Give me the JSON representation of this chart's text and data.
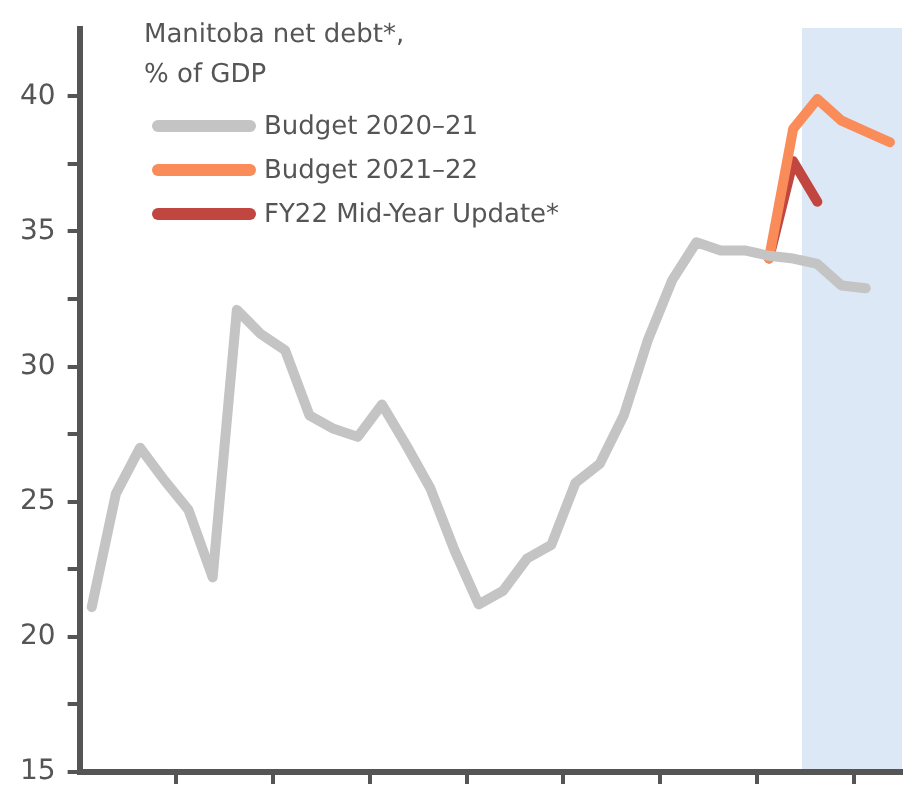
{
  "chart_data": {
    "type": "line",
    "title": "Manitoba net debt*,\n% of GDP",
    "categories": [
      null,
      null,
      null,
      null,
      null,
      null,
      null,
      null,
      null,
      null,
      null,
      null,
      null,
      null,
      null,
      null,
      null,
      null,
      null,
      null,
      null,
      null,
      null,
      null,
      null,
      null,
      null,
      null,
      null,
      null,
      null,
      null,
      null,
      null
    ],
    "series": [
      {
        "name": "Budget 2020–21",
        "color": "#c4c4c4",
        "values": [
          21.1,
          25.3,
          27.0,
          25.8,
          24.7,
          22.2,
          32.1,
          31.2,
          30.6,
          28.2,
          27.7,
          27.4,
          28.6,
          27.1,
          25.5,
          23.2,
          21.2,
          21.7,
          22.9,
          23.4,
          25.7,
          26.4,
          28.2,
          31.0,
          33.2,
          34.6,
          34.3,
          34.3,
          34.1,
          34.0,
          33.8,
          33.0,
          32.9,
          null
        ]
      },
      {
        "name": "Budget 2021–22",
        "color": "#fa8c5a",
        "values": [
          null,
          null,
          null,
          null,
          null,
          null,
          null,
          null,
          null,
          null,
          null,
          null,
          null,
          null,
          null,
          null,
          null,
          null,
          null,
          null,
          null,
          null,
          null,
          null,
          null,
          null,
          null,
          null,
          34.0,
          38.8,
          39.9,
          39.1,
          38.7,
          38.3
        ]
      },
      {
        "name": "FY22 Mid-Year Update*",
        "color": "#c0463f",
        "values": [
          null,
          null,
          null,
          null,
          null,
          null,
          null,
          null,
          null,
          null,
          null,
          null,
          null,
          null,
          null,
          null,
          null,
          null,
          null,
          null,
          null,
          null,
          null,
          null,
          null,
          null,
          null,
          null,
          34.0,
          37.6,
          36.1,
          null,
          null,
          null
        ]
      }
    ],
    "ylim": [
      15,
      42.5
    ],
    "yticks": [
      15,
      {
        "value": 17.5,
        "label": null
      },
      20,
      {
        "value": 22.5,
        "label": null
      },
      25,
      {
        "value": 27.5,
        "label": null
      },
      30,
      {
        "value": 32.5,
        "label": null
      },
      35,
      {
        "value": 37.5,
        "label": null
      },
      40
    ],
    "tick_labels": "y",
    "legend": "top left",
    "marker": "none",
    "line_style": "solid"
  }
}
